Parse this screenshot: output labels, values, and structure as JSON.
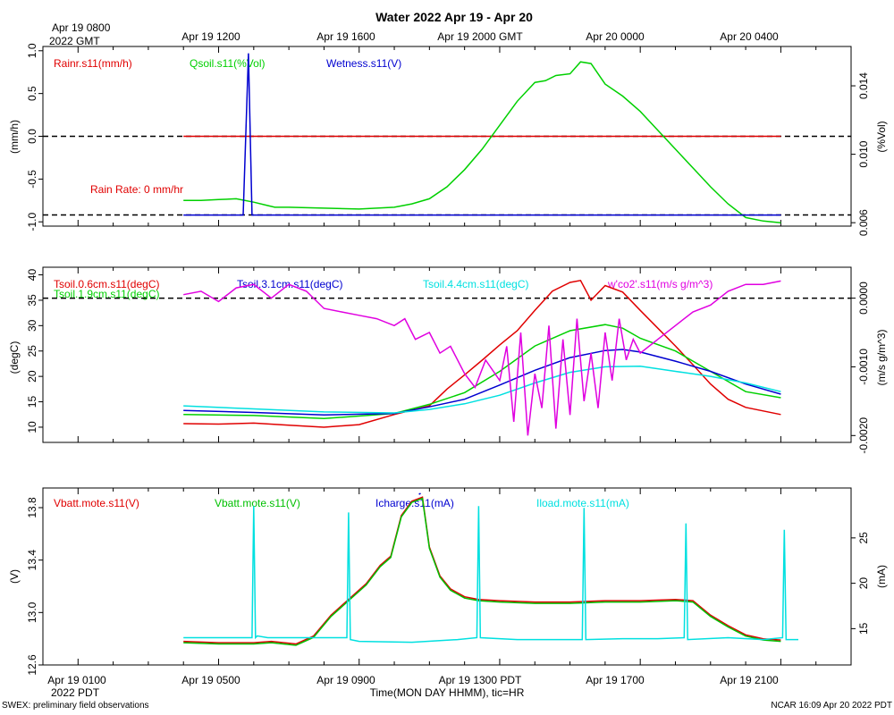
{
  "title": "Water 2022 Apr 19 - Apr 20",
  "top_axis": {
    "origin_label_line1": "Apr 19 0800",
    "origin_label_line2": "2022 GMT",
    "tick_labels": [
      "Apr 19 1200",
      "Apr 19 1600",
      "Apr 19 2000 GMT",
      "Apr 20 0000",
      "Apr 20 0400"
    ]
  },
  "bottom_axis": {
    "tick_labels": [
      "Apr 19 0100",
      "Apr 19 0500",
      "Apr 19 0900",
      "Apr 19 1300 PDT",
      "Apr 19 1700",
      "Apr 19 2100"
    ],
    "year_label": "2022 PDT",
    "xlabel": "Time(MON DAY HHMM), tic=HR"
  },
  "footer": {
    "left": "SWEX: preliminary field observations",
    "right": "NCAR 16:09 Apr 20 2022 PDT"
  },
  "chart_data": [
    {
      "type": "line",
      "panel": "water",
      "x_unit": "hours since Apr 19 0000 PDT",
      "xlim": [
        0,
        23
      ],
      "ylabel": "(mm/h)",
      "ylim": [
        -1.05,
        1.05
      ],
      "yticks": [
        -1.0,
        -0.5,
        0.0,
        0.5,
        1.0
      ],
      "ytick_labels": [
        "-1.0",
        "-0.5",
        "0.0",
        "0.5",
        "1.0"
      ],
      "ylabel_right": "(%Vol)",
      "ylim_right": [
        0.0058,
        0.0163
      ],
      "yticks_right": [
        0.006,
        0.01,
        0.014
      ],
      "ytick_labels_right": [
        "0.006",
        "0.010",
        "0.014"
      ],
      "reference_lines": [
        0.0,
        -0.92
      ],
      "annotation": "Rain Rate: 0 mm/hr",
      "series": [
        {
          "name": "Rainr.s11(mm/h)",
          "color": "#e00000",
          "axis": "left",
          "x": [
            4,
            21
          ],
          "y": [
            0.0,
            0.0
          ]
        },
        {
          "name": "Qsoil.s11(%Vol)",
          "color": "#00d000",
          "axis": "right",
          "x": [
            4,
            4.5,
            5,
            5.5,
            6,
            6.4,
            6.6,
            7,
            8,
            9,
            10,
            10.5,
            11,
            11.5,
            12,
            12.5,
            13,
            13.5,
            14,
            14.3,
            14.6,
            15,
            15.3,
            15.6,
            16,
            16.5,
            17,
            17.5,
            18,
            18.5,
            19,
            19.5,
            20,
            20.5,
            21
          ],
          "y": [
            0.0073,
            0.0073,
            0.00735,
            0.0074,
            0.0072,
            0.007,
            0.0069,
            0.0069,
            0.00685,
            0.0068,
            0.0069,
            0.0071,
            0.0074,
            0.0081,
            0.0091,
            0.0103,
            0.0117,
            0.0131,
            0.0142,
            0.0143,
            0.0146,
            0.0147,
            0.0154,
            0.0153,
            0.0141,
            0.0134,
            0.0125,
            0.0114,
            0.0103,
            0.0092,
            0.0081,
            0.0071,
            0.0063,
            0.0061,
            0.006
          ]
        },
        {
          "name": "Wetness.s11(V)",
          "color": "#0000d0",
          "axis": "left",
          "x": [
            4,
            5.7,
            5.85,
            5.95,
            6.05,
            21
          ],
          "y": [
            -0.92,
            -0.92,
            0.97,
            -0.92,
            -0.92,
            -0.92
          ]
        }
      ]
    },
    {
      "type": "line",
      "panel": "soil-temperature",
      "x_unit": "hours since Apr 19 0000 PDT",
      "xlim": [
        0,
        23
      ],
      "ylabel": "(degC)",
      "ylim": [
        7,
        41.5
      ],
      "yticks": [
        10,
        15,
        20,
        25,
        30,
        35,
        40
      ],
      "ytick_labels": [
        "10",
        "15",
        "20",
        "25",
        "30",
        "35",
        "40"
      ],
      "ylabel_right": "(m/s g/m^3)",
      "ylim_right": [
        -0.0021,
        0.00045
      ],
      "yticks_right": [
        -0.002,
        -0.001,
        0.0
      ],
      "ytick_labels_right": [
        "-0.0020",
        "-0.0010",
        "0.0000"
      ],
      "reference_lines_right": [
        0.0
      ],
      "series": [
        {
          "name": "Tsoil.0.6cm.s11(degC)",
          "color": "#e00000",
          "axis": "left",
          "x": [
            4,
            5,
            6,
            7,
            8,
            9,
            10,
            11,
            11.5,
            12,
            12.5,
            13,
            13.5,
            14,
            14.5,
            15,
            15.3,
            15.6,
            16,
            16.5,
            17,
            17.5,
            18,
            18.5,
            19,
            19.5,
            20,
            20.5,
            21
          ],
          "y": [
            10.7,
            10.6,
            10.8,
            10.4,
            10.0,
            10.5,
            12.5,
            14.2,
            17.5,
            20.3,
            23.2,
            26.2,
            29.0,
            33.0,
            36.8,
            38.5,
            38.9,
            35.0,
            37.9,
            36.6,
            33.0,
            29.5,
            26.0,
            22.3,
            18.5,
            15.5,
            13.9,
            13.2,
            12.5
          ]
        },
        {
          "name": "Tsoil.1.9cm.s11(degC)",
          "color": "#00d000",
          "axis": "left",
          "x": [
            4,
            6,
            8,
            10,
            11,
            12,
            13,
            14,
            15,
            16,
            16.5,
            17,
            18,
            19,
            20,
            21
          ],
          "y": [
            12.5,
            12.3,
            11.7,
            12.7,
            14.5,
            16.8,
            21.0,
            26.0,
            29.0,
            30.2,
            29.5,
            27.5,
            25.0,
            21.0,
            17.0,
            15.8
          ]
        },
        {
          "name": "Tsoil.3.1cm.s11(degC)",
          "color": "#0000d0",
          "axis": "left",
          "x": [
            4,
            6,
            8,
            10,
            11,
            12,
            13,
            14,
            15,
            16,
            16.5,
            17,
            18,
            19,
            20,
            21
          ],
          "y": [
            13.3,
            12.9,
            12.4,
            12.7,
            14.0,
            15.5,
            18.3,
            21.2,
            23.7,
            25.1,
            25.3,
            24.8,
            23.0,
            21.0,
            18.5,
            16.5
          ]
        },
        {
          "name": "Tsoil.4.4cm.s11(degC)",
          "color": "#00e0e0",
          "axis": "left",
          "x": [
            4,
            6,
            8,
            10,
            11,
            12,
            13,
            14,
            15,
            16,
            17,
            18,
            19,
            20,
            21
          ],
          "y": [
            14.2,
            13.6,
            13.0,
            12.8,
            13.5,
            14.6,
            16.3,
            18.7,
            20.8,
            21.9,
            22.0,
            21.0,
            20.0,
            18.7,
            17.0
          ]
        },
        {
          "name": "w'co2'.s11(m/s g/m^3)",
          "color": "#e000e0",
          "axis": "right",
          "x": [
            4,
            4.5,
            5,
            5.5,
            6,
            6.5,
            7,
            7.5,
            8,
            8.5,
            9,
            9.5,
            10,
            10.3,
            10.6,
            11,
            11.3,
            11.6,
            12,
            12.3,
            12.6,
            13,
            13.2,
            13.4,
            13.6,
            13.8,
            14,
            14.2,
            14.4,
            14.6,
            14.8,
            15,
            15.2,
            15.4,
            15.6,
            15.8,
            16,
            16.2,
            16.4,
            16.6,
            16.8,
            17,
            17.5,
            18,
            18.5,
            19,
            19.5,
            20,
            20.5,
            21
          ],
          "y": [
            5e-05,
            0.0001,
            -5e-05,
            0.00015,
            0.0002,
            0.0,
            0.0002,
            0.0001,
            -0.00015,
            -0.0002,
            -0.00025,
            -0.0003,
            -0.0004,
            -0.0003,
            -0.0006,
            -0.0005,
            -0.0008,
            -0.0007,
            -0.0011,
            -0.0013,
            -0.0009,
            -0.0012,
            -0.0007,
            -0.0018,
            -0.0005,
            -0.002,
            -0.0011,
            -0.0016,
            -0.0004,
            -0.0019,
            -0.0006,
            -0.0017,
            -0.0003,
            -0.0015,
            -0.0008,
            -0.0016,
            -0.0005,
            -0.0012,
            -0.0003,
            -0.0009,
            -0.0006,
            -0.0008,
            -0.0006,
            -0.0004,
            -0.0002,
            -0.0001,
            0.0001,
            0.0002,
            0.0002,
            0.00025
          ]
        }
      ]
    },
    {
      "type": "line",
      "panel": "power",
      "x_unit": "hours since Apr 19 0000 PDT",
      "xlim": [
        0,
        23
      ],
      "ylabel": "(V)",
      "ylim": [
        12.6,
        13.95
      ],
      "yticks": [
        12.6,
        13.0,
        13.4,
        13.8
      ],
      "ytick_labels": [
        "12.6",
        "13.0",
        "13.4",
        "13.8"
      ],
      "ylabel_right": "(mA)",
      "ylim_right": [
        11,
        30.5
      ],
      "yticks_right": [
        15,
        20,
        25
      ],
      "ytick_labels_right": [
        "15",
        "20",
        "25"
      ],
      "series": [
        {
          "name": "Vbatt.mote.s11(V)",
          "color": "#e00000",
          "axis": "left",
          "x": [
            4,
            5,
            6,
            6.5,
            7.2,
            7.7,
            8.2,
            8.7,
            9.2,
            9.6,
            9.9,
            10.2,
            10.5,
            10.8,
            11,
            11.3,
            11.6,
            12,
            12.4,
            13,
            14,
            15,
            16,
            17,
            18,
            18.5,
            19,
            19.5,
            20,
            20.5,
            21
          ],
          "y": [
            12.78,
            12.77,
            12.77,
            12.78,
            12.76,
            12.82,
            12.98,
            13.1,
            13.22,
            13.36,
            13.43,
            13.74,
            13.85,
            13.88,
            13.5,
            13.28,
            13.18,
            13.12,
            13.1,
            13.09,
            13.08,
            13.08,
            13.09,
            13.09,
            13.1,
            13.09,
            12.98,
            12.9,
            12.83,
            12.8,
            12.79
          ]
        },
        {
          "name": "Vbatt.mote.s11(V)",
          "color": "#00c000",
          "axis": "left",
          "x": [
            4,
            5,
            6,
            6.5,
            7.2,
            7.7,
            8.2,
            8.7,
            9.2,
            9.6,
            9.9,
            10.2,
            10.5,
            10.8,
            11,
            11.3,
            11.6,
            12,
            12.4,
            13,
            14,
            15,
            16,
            17,
            18,
            18.5,
            19,
            19.5,
            20,
            20.5,
            21
          ],
          "y": [
            12.77,
            12.76,
            12.76,
            12.77,
            12.75,
            12.81,
            12.97,
            13.09,
            13.21,
            13.35,
            13.42,
            13.73,
            13.84,
            13.87,
            13.49,
            13.27,
            13.17,
            13.11,
            13.09,
            13.08,
            13.07,
            13.07,
            13.08,
            13.08,
            13.09,
            13.08,
            12.97,
            12.89,
            12.82,
            12.79,
            12.78
          ]
        },
        {
          "name": "Icharge.s11(mA)",
          "color": "#0000d0",
          "axis": "right",
          "x": [
            10.7,
            10.75
          ],
          "y": [
            29.8,
            29.9
          ]
        },
        {
          "name": "Iload.mote.s11(mA)",
          "color": "#00e0e0",
          "axis": "right",
          "x": [
            4,
            5.7,
            5.95,
            6.0,
            6.05,
            6.1,
            6.4,
            7.5,
            8.5,
            8.65,
            8.7,
            8.75,
            9.0,
            10.5,
            11.8,
            12.35,
            12.4,
            12.45,
            13.5,
            15.35,
            15.4,
            15.45,
            16.5,
            17.5,
            18.25,
            18.3,
            18.35,
            19.5,
            20.5,
            21.05,
            21.1,
            21.15,
            21.5
          ],
          "y": [
            14.0,
            14.0,
            14.0,
            28.5,
            14.0,
            14.2,
            14.0,
            14.0,
            14.0,
            14.0,
            27.8,
            13.8,
            13.6,
            13.5,
            13.8,
            14.0,
            28.5,
            14.0,
            13.8,
            13.8,
            28.3,
            13.8,
            13.9,
            13.9,
            14.0,
            26.6,
            13.8,
            14.0,
            13.8,
            14.0,
            25.9,
            13.8,
            13.8
          ]
        }
      ]
    }
  ]
}
